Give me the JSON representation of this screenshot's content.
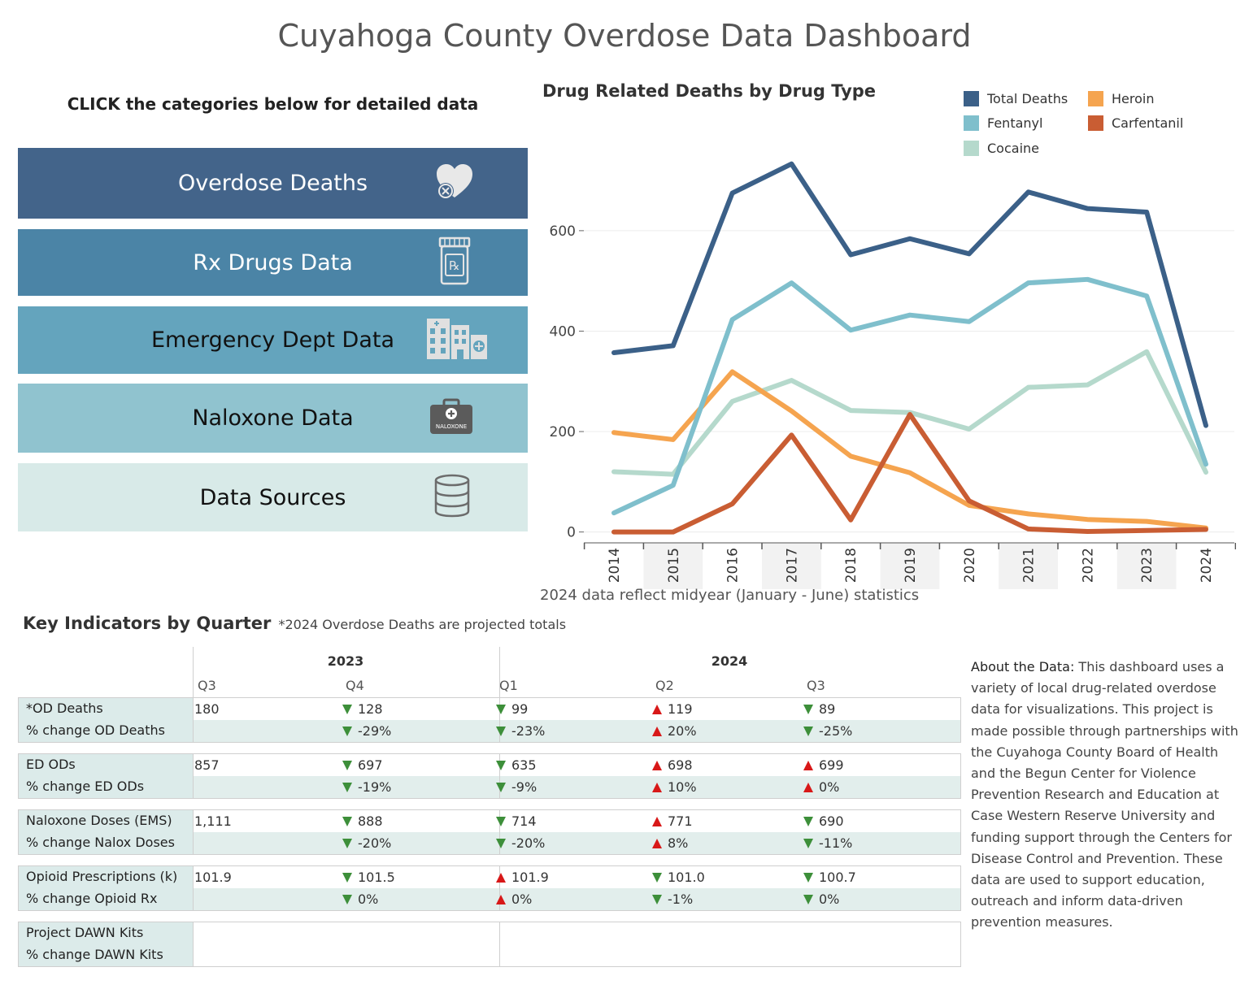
{
  "title": "Cuyahoga County Overdose Data Dashboard",
  "instructions": "CLICK the categories below for detailed data",
  "categories": [
    {
      "label": "Overdose Deaths",
      "color": "#43648a",
      "text_color": "#ffffff",
      "icon": "heart-x-icon"
    },
    {
      "label": "Rx Drugs Data",
      "color": "#4b84a6",
      "text_color": "#ffffff",
      "icon": "pill-bottle-icon"
    },
    {
      "label": "Emergency Dept Data",
      "color": "#64a4bd",
      "text_color": "#111111",
      "icon": "hospital-icon"
    },
    {
      "label": "Naloxone Data",
      "color": "#90c3cf",
      "text_color": "#111111",
      "icon": "naloxone-kit-icon"
    },
    {
      "label": "Data Sources",
      "color": "#d8eae8",
      "text_color": "#111111",
      "icon": "database-icon"
    }
  ],
  "naloxone_icon_text": "NALOXONE",
  "chart_data": {
    "type": "line",
    "title": "Drug Related Deaths by Drug Type",
    "x": [
      "2014",
      "2015",
      "2016",
      "2017",
      "2018",
      "2019",
      "2020",
      "2021",
      "2022",
      "2023",
      "2024"
    ],
    "ylim": [
      -20,
      760
    ],
    "yticks": [
      0,
      200,
      400,
      600
    ],
    "ytick_labels": [
      "0",
      "200",
      "400",
      "600"
    ],
    "series": [
      {
        "name": "Total Deaths",
        "color": "#3b6088",
        "values": [
          357,
          371,
          675,
          733,
          552,
          584,
          554,
          677,
          644,
          637,
          212
        ]
      },
      {
        "name": "Fentanyl",
        "color": "#7fbfcc",
        "values": [
          38,
          93,
          423,
          496,
          402,
          432,
          419,
          496,
          503,
          470,
          135
        ]
      },
      {
        "name": "Cocaine",
        "color": "#b5d9cc",
        "values": [
          120,
          115,
          260,
          302,
          242,
          238,
          205,
          288,
          293,
          359,
          119
        ]
      },
      {
        "name": "Heroin",
        "color": "#f5a44f",
        "values": [
          198,
          184,
          319,
          241,
          151,
          118,
          53,
          36,
          25,
          21,
          8
        ]
      },
      {
        "name": "Carfentanil",
        "color": "#c95d33",
        "values": [
          0,
          0,
          56,
          193,
          24,
          234,
          62,
          6,
          1,
          3,
          5
        ]
      }
    ],
    "note": "2024 data reflect midyear (January - June) statistics"
  },
  "key_indicators": {
    "title": "Key Indicators by Quarter",
    "subtitle": "*2024 Overdose Deaths are projected totals",
    "years": [
      "2023",
      "2024"
    ],
    "quarters": [
      "Q3",
      "Q4",
      "Q1",
      "Q2",
      "Q3"
    ],
    "groups": [
      {
        "rows": [
          {
            "label": "*OD Deaths",
            "cells": [
              {
                "v": "180",
                "d": ""
              },
              {
                "v": "128",
                "d": "down"
              },
              {
                "v": "99",
                "d": "down"
              },
              {
                "v": "119",
                "d": "up"
              },
              {
                "v": "89",
                "d": "down"
              }
            ]
          },
          {
            "label": "% change OD Deaths",
            "cells": [
              {
                "v": "",
                "d": ""
              },
              {
                "v": "-29%",
                "d": "down"
              },
              {
                "v": "-23%",
                "d": "down"
              },
              {
                "v": "20%",
                "d": "up"
              },
              {
                "v": "-25%",
                "d": "down"
              }
            ]
          }
        ]
      },
      {
        "rows": [
          {
            "label": "ED ODs",
            "cells": [
              {
                "v": "857",
                "d": ""
              },
              {
                "v": "697",
                "d": "down"
              },
              {
                "v": "635",
                "d": "down"
              },
              {
                "v": "698",
                "d": "up"
              },
              {
                "v": "699",
                "d": "up"
              }
            ]
          },
          {
            "label": "% change ED ODs",
            "cells": [
              {
                "v": "",
                "d": ""
              },
              {
                "v": "-19%",
                "d": "down"
              },
              {
                "v": "-9%",
                "d": "down"
              },
              {
                "v": "10%",
                "d": "up"
              },
              {
                "v": "0%",
                "d": "up"
              }
            ]
          }
        ]
      },
      {
        "rows": [
          {
            "label": "Naloxone Doses (EMS)",
            "cells": [
              {
                "v": "1,111",
                "d": ""
              },
              {
                "v": "888",
                "d": "down"
              },
              {
                "v": "714",
                "d": "down"
              },
              {
                "v": "771",
                "d": "up"
              },
              {
                "v": "690",
                "d": "down"
              }
            ]
          },
          {
            "label": "% change Nalox Doses",
            "cells": [
              {
                "v": "",
                "d": ""
              },
              {
                "v": "-20%",
                "d": "down"
              },
              {
                "v": "-20%",
                "d": "down"
              },
              {
                "v": "8%",
                "d": "up"
              },
              {
                "v": "-11%",
                "d": "down"
              }
            ]
          }
        ]
      },
      {
        "rows": [
          {
            "label": "Opioid Prescriptions (k)",
            "cells": [
              {
                "v": "101.9",
                "d": ""
              },
              {
                "v": "101.5",
                "d": "down"
              },
              {
                "v": "101.9",
                "d": "up"
              },
              {
                "v": "101.0",
                "d": "down"
              },
              {
                "v": "100.7",
                "d": "down"
              }
            ]
          },
          {
            "label": "% change Opioid Rx",
            "cells": [
              {
                "v": "",
                "d": ""
              },
              {
                "v": "0%",
                "d": "down"
              },
              {
                "v": "0%",
                "d": "up"
              },
              {
                "v": "-1%",
                "d": "down"
              },
              {
                "v": "0%",
                "d": "down"
              }
            ]
          }
        ]
      },
      {
        "rows": [
          {
            "label": "Project DAWN Kits",
            "cells": [
              {
                "v": "",
                "d": ""
              },
              {
                "v": "",
                "d": ""
              },
              {
                "v": "",
                "d": ""
              },
              {
                "v": "",
                "d": ""
              },
              {
                "v": "",
                "d": ""
              }
            ]
          },
          {
            "label": "% change DAWN Kits",
            "cells": [
              {
                "v": "",
                "d": ""
              },
              {
                "v": "",
                "d": ""
              },
              {
                "v": "",
                "d": ""
              },
              {
                "v": "",
                "d": ""
              },
              {
                "v": "",
                "d": ""
              }
            ]
          }
        ]
      }
    ],
    "colors": {
      "down": "#3d8f3a",
      "up": "#d81818"
    }
  },
  "about": {
    "heading": "About the Data:",
    "text": "This dashboard uses a variety of local drug-related overdose data for visualizations.  This project is made possible through partnerships with the Cuyahoga County Board of Health and the Begun Center for Violence Prevention Research and Education at Case Western Reserve University and funding support through the Centers for Disease Control and Prevention.  These data are used to support education, outreach and inform data-driven prevention measures."
  }
}
